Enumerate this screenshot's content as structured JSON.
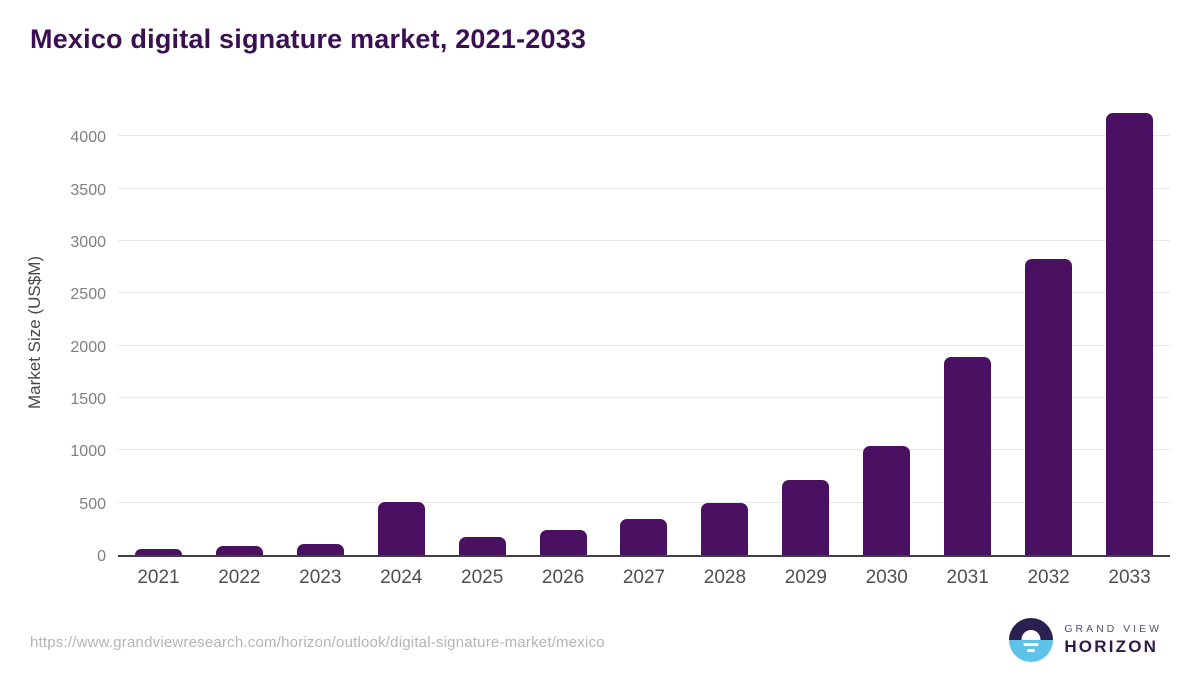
{
  "title": "Mexico digital signature market, 2021-2033",
  "source_url": "https://www.grandviewresearch.com/horizon/outlook/digital-signature-market/mexico",
  "logo": {
    "top_text": "GRAND VIEW",
    "bottom_text": "HORIZON"
  },
  "colors": {
    "title_text": "#3b1053",
    "bar": "#4a1162",
    "gridline": "#e8e8e8",
    "axis_line": "#3f3f3f",
    "y_tick_label": "#7f7f7f",
    "x_tick_label": "#4f4f4f",
    "source_url_text": "#b4b4b4",
    "logo_dark_purple": "#2e1a47",
    "logo_navy": "#2b2150",
    "logo_light_blue": "#5ec2e9"
  },
  "chart_data": {
    "type": "bar",
    "title": "Mexico digital signature market, 2021-2033",
    "categories": [
      "2021",
      "2022",
      "2023",
      "2024",
      "2025",
      "2026",
      "2027",
      "2028",
      "2029",
      "2030",
      "2031",
      "2032",
      "2033"
    ],
    "values": [
      60,
      85,
      105,
      510,
      175,
      240,
      345,
      495,
      715,
      1045,
      1890,
      2825,
      4220
    ],
    "xlabel": "",
    "ylabel": "Market Size (US$M)",
    "ylim": [
      0,
      4270
    ],
    "yticks": [
      0,
      500,
      1000,
      1500,
      2000,
      2500,
      3000,
      3500,
      4000
    ],
    "grid": true,
    "legend": false,
    "bar_color": "#4a1162"
  }
}
